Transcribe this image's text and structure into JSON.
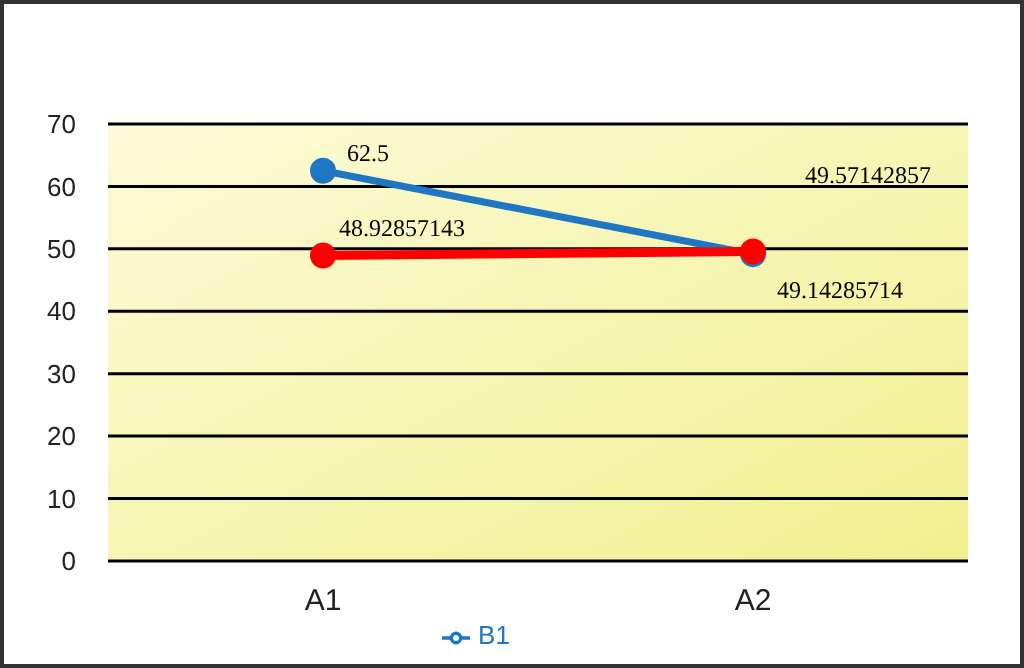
{
  "chart_data": {
    "type": "line",
    "categories": [
      "A1",
      "A2"
    ],
    "series": [
      {
        "name": "B1",
        "color": "#1f77c4",
        "values": [
          62.5,
          49.14285714
        ]
      },
      {
        "color": "#ff0000",
        "values": [
          48.92857143,
          49.57142857
        ]
      }
    ],
    "ylim": [
      0,
      70
    ],
    "yticks": [
      0,
      10,
      20,
      30,
      40,
      50,
      60,
      70
    ],
    "grid": "y",
    "legend": "bottom",
    "marker": "circle",
    "line_style": "solid",
    "data_labels": true
  }
}
